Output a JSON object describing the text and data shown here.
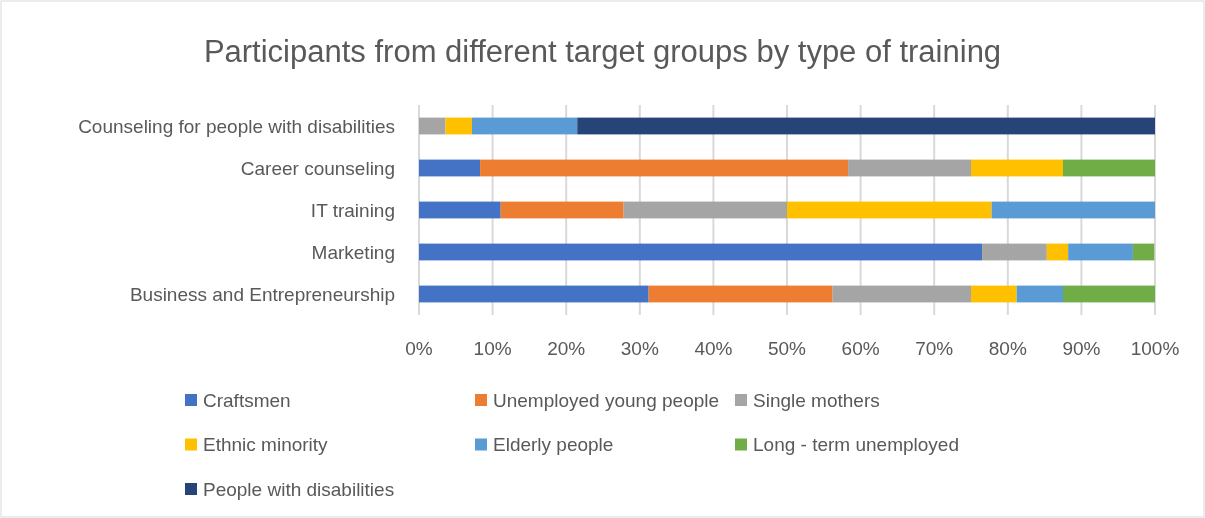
{
  "chart_data": {
    "type": "bar",
    "orientation": "horizontal",
    "stacked": true,
    "title": "Participants from different target groups by type of training",
    "categories": [
      "Counseling for people with disabilities",
      "Career counseling",
      "IT training",
      "Marketing",
      "Business and Entrepreneurship"
    ],
    "series": [
      {
        "name": "Craftsmen",
        "color": "#4472c4",
        "values": [
          0,
          8.3,
          11.1,
          76.5,
          31.2
        ]
      },
      {
        "name": "Unemployed young people",
        "color": "#ed7d31",
        "values": [
          0,
          50,
          16.7,
          0,
          25
        ]
      },
      {
        "name": "Single mothers",
        "color": "#a5a5a5",
        "values": [
          3.6,
          16.7,
          22.2,
          8.8,
          18.8
        ]
      },
      {
        "name": "Ethnic minority",
        "color": "#ffc000",
        "values": [
          3.6,
          12.5,
          27.8,
          2.9,
          6.2
        ]
      },
      {
        "name": "Elderly people",
        "color": "#5b9bd5",
        "values": [
          14.3,
          0,
          22.2,
          8.8,
          6.3
        ]
      },
      {
        "name": "Long - term unemployed",
        "color": "#70ad47",
        "values": [
          0,
          12.5,
          0,
          2.9,
          12.5
        ]
      },
      {
        "name": "People with disabilities",
        "color": "#264478",
        "values": [
          78.5,
          0,
          0,
          0,
          0
        ]
      }
    ],
    "xlim": [
      0,
      100
    ],
    "xticks": [
      {
        "value": 0,
        "label": "0%"
      },
      {
        "value": 10,
        "label": "10%"
      },
      {
        "value": 20,
        "label": "20%"
      },
      {
        "value": 30,
        "label": "30%"
      },
      {
        "value": 40,
        "label": "40%"
      },
      {
        "value": 50,
        "label": "50%"
      },
      {
        "value": 60,
        "label": "60%"
      },
      {
        "value": 70,
        "label": "70%"
      },
      {
        "value": 80,
        "label": "80%"
      },
      {
        "value": 90,
        "label": "90%"
      },
      {
        "value": 100,
        "label": "100%"
      }
    ],
    "grid": "x",
    "legend": "bottom"
  }
}
